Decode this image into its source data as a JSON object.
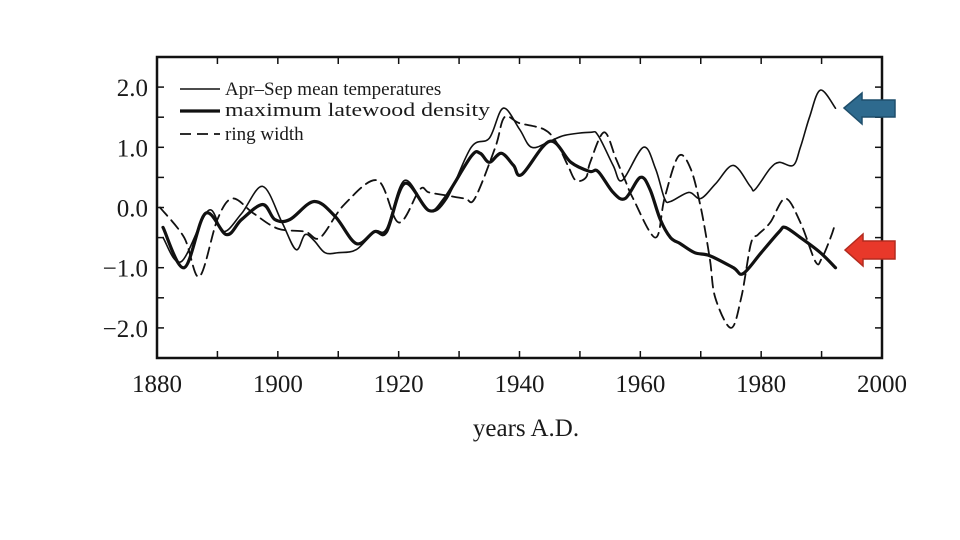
{
  "chart_data": {
    "type": "line",
    "title": "",
    "xlabel": "years A.D.",
    "ylabel": "",
    "xlim": [
      1880,
      2000
    ],
    "ylim": [
      -2.5,
      2.5
    ],
    "xticks": [
      1880,
      1900,
      1920,
      1940,
      1960,
      1980,
      2000
    ],
    "xtick_labels": [
      "1880",
      "1900",
      "1920",
      "1940",
      "1960",
      "1980",
      "2000"
    ],
    "yticks": [
      2.0,
      1.0,
      0.0,
      -1.0,
      -2.0
    ],
    "ytick_labels": [
      "2.0",
      "1.0",
      "0.0",
      "−1.0",
      "−2.0"
    ],
    "grid": false,
    "legend_position": "top-left",
    "series": [
      {
        "name": "Apr–Sep mean temperatures",
        "style": "thin-solid",
        "x": [
          1881,
          1884,
          1888.5,
          1891,
          1894,
          1897.5,
          1900.7,
          1903,
          1904.5,
          1906,
          1907.8,
          1910,
          1913,
          1916,
          1918,
          1921,
          1925,
          1928,
          1932,
          1935,
          1937.3,
          1940,
          1942,
          1945,
          1947.5,
          1951.7,
          1953,
          1955.5,
          1957,
          1960.5,
          1962.5,
          1964,
          1965,
          1968,
          1970,
          1972.5,
          1975.4,
          1978.2,
          1979,
          1981.5,
          1983,
          1985.3,
          1986.5,
          1988,
          1989.8,
          1992.3
        ],
        "y": [
          -0.5,
          -0.9,
          -0.05,
          -0.4,
          -0.1,
          0.35,
          -0.25,
          -0.7,
          -0.45,
          -0.55,
          -0.75,
          -0.75,
          -0.7,
          -0.4,
          -0.35,
          0.45,
          -0.05,
          0.15,
          1.0,
          1.15,
          1.65,
          1.3,
          1.0,
          1.1,
          1.2,
          1.25,
          1.2,
          0.7,
          0.45,
          1.0,
          0.65,
          0.15,
          0.1,
          0.25,
          0.15,
          0.4,
          0.7,
          0.35,
          0.3,
          0.65,
          0.75,
          0.7,
          1.0,
          1.5,
          1.95,
          1.65
        ]
      },
      {
        "name": "maximum latewood density",
        "style": "thick-solid",
        "x": [
          1881,
          1884.5,
          1888,
          1891.5,
          1894,
          1897.5,
          1899.5,
          1902,
          1906,
          1909.5,
          1913,
          1916,
          1918,
          1921,
          1925,
          1927.6,
          1932,
          1933.5,
          1935,
          1937,
          1939,
          1940.4,
          1945,
          1948.5,
          1951.6,
          1953,
          1955.5,
          1957.5,
          1960,
          1961.6,
          1963.3,
          1965,
          1966.6,
          1969,
          1971.5,
          1975.4,
          1977,
          1980,
          1983,
          1984,
          1986.5,
          1989.8,
          1992.3
        ],
        "y": [
          -0.33,
          -1.0,
          -0.1,
          -0.45,
          -0.2,
          0.05,
          -0.2,
          -0.2,
          0.1,
          -0.15,
          -0.6,
          -0.4,
          -0.4,
          0.4,
          -0.05,
          0.15,
          0.85,
          0.9,
          0.75,
          0.9,
          0.7,
          0.55,
          1.1,
          0.75,
          0.6,
          0.6,
          0.25,
          0.15,
          0.5,
          0.3,
          -0.2,
          -0.5,
          -0.6,
          -0.75,
          -0.8,
          -1.0,
          -1.1,
          -0.75,
          -0.4,
          -0.33,
          -0.5,
          -0.75,
          -1.0
        ]
      },
      {
        "name": "ring width",
        "style": "dashed",
        "x": [
          1880.5,
          1884.5,
          1887,
          1890,
          1892.5,
          1896,
          1900,
          1904.5,
          1907,
          1911,
          1916.5,
          1920,
          1923.5,
          1925,
          1928,
          1931,
          1932.6,
          1936,
          1937.5,
          1940,
          1944,
          1946,
          1948,
          1949.3,
          1951,
          1951.7,
          1954,
          1956,
          1957.5,
          1958.8,
          1962.5,
          1964,
          1966.3,
          1968.3,
          1970,
          1971.5,
          1972.4,
          1975,
          1976.7,
          1978.3,
          1979.5,
          1981.5,
          1984,
          1986.5,
          1989,
          1990,
          1991.5,
          1992.3
        ],
        "y": [
          0.0,
          -0.5,
          -1.15,
          -0.2,
          0.15,
          -0.1,
          -0.35,
          -0.4,
          -0.5,
          0.05,
          0.45,
          -0.25,
          0.3,
          0.25,
          0.2,
          0.15,
          0.15,
          1.0,
          1.5,
          1.4,
          1.3,
          1.1,
          0.7,
          0.45,
          0.5,
          0.75,
          1.25,
          0.8,
          0.45,
          0.15,
          -0.5,
          0.15,
          0.85,
          0.65,
          0.0,
          -0.85,
          -1.5,
          -2.0,
          -1.5,
          -0.6,
          -0.45,
          -0.25,
          0.15,
          -0.25,
          -0.9,
          -0.85,
          -0.5,
          -0.25
        ]
      }
    ],
    "annotations": [
      {
        "type": "arrow",
        "direction": "left",
        "color": "#2E6A8E",
        "border": "#1F4E6B",
        "points_to_value": 1.7,
        "label": "temperature divergence marker"
      },
      {
        "type": "arrow",
        "direction": "left",
        "color": "#E8382A",
        "border": "#B22A1E",
        "points_to_value": -0.7,
        "label": "density divergence marker"
      }
    ]
  }
}
